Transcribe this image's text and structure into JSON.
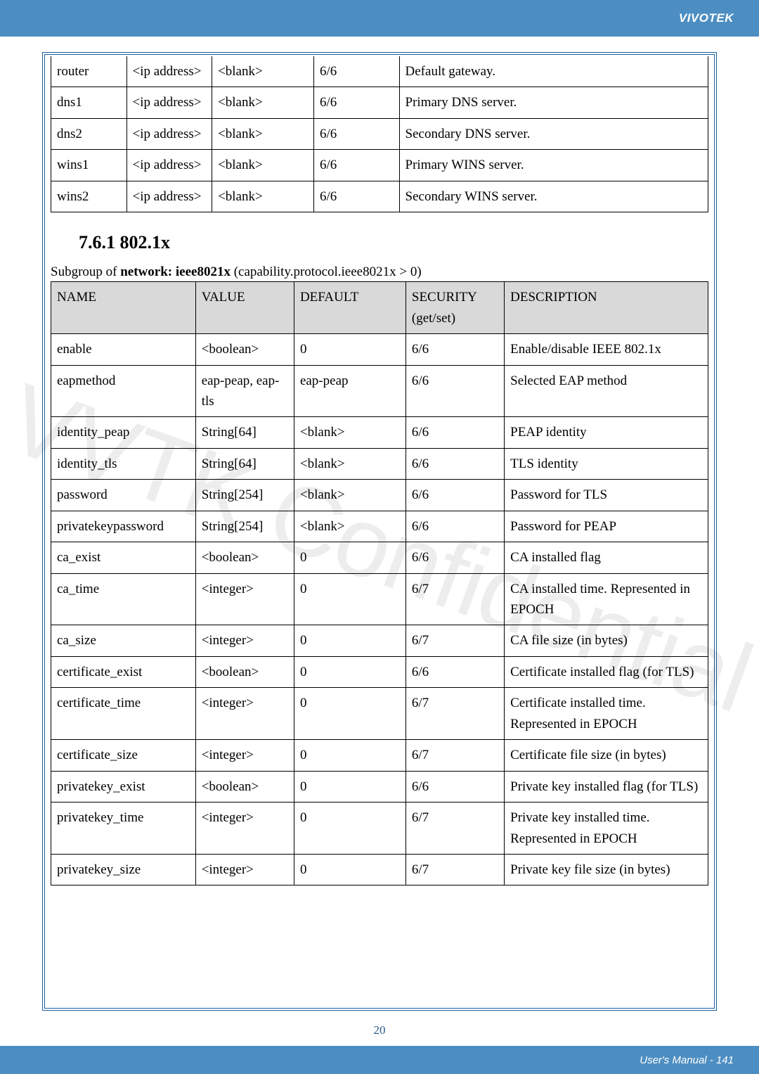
{
  "header": {
    "brand": "VIVOTEK"
  },
  "table1": {
    "columns": [
      "",
      "",
      "",
      "",
      ""
    ],
    "rows": [
      [
        "router",
        "<ip address>",
        "<blank>",
        "6/6",
        "Default gateway."
      ],
      [
        "dns1",
        "<ip address>",
        "<blank>",
        "6/6",
        "Primary DNS server."
      ],
      [
        "dns2",
        "<ip address>",
        "<blank>",
        "6/6",
        "Secondary DNS server."
      ],
      [
        "wins1",
        "<ip address>",
        "<blank>",
        "6/6",
        "Primary WINS server."
      ],
      [
        "wins2",
        "<ip address>",
        "<blank>",
        "6/6",
        "Secondary WINS server."
      ]
    ]
  },
  "section_heading": "7.6.1 802.1x",
  "subgroup_prefix": "Subgroup of ",
  "subgroup_bold": "network: ieee8021x",
  "subgroup_suffix": " (capability.protocol.ieee8021x > 0)",
  "table2": {
    "headers": [
      "NAME",
      "VALUE",
      "DEFAULT",
      "SECURITY (get/set)",
      "DESCRIPTION"
    ],
    "rows": [
      [
        "enable",
        "<boolean>",
        "0",
        "6/6",
        "Enable/disable IEEE 802.1x"
      ],
      [
        "eapmethod",
        "eap-peap, eap-tls",
        "eap-peap",
        "6/6",
        "Selected EAP method"
      ],
      [
        "identity_peap",
        "String[64]",
        "<blank>",
        "6/6",
        "PEAP identity"
      ],
      [
        "identity_tls",
        "String[64]",
        "<blank>",
        "6/6",
        "TLS identity"
      ],
      [
        "password",
        "String[254]",
        "<blank>",
        "6/6",
        "Password for TLS"
      ],
      [
        "privatekeypassword",
        "String[254]",
        "<blank>",
        "6/6",
        "Password for PEAP"
      ],
      [
        "ca_exist",
        "<boolean>",
        "0",
        "6/6",
        "CA installed flag"
      ],
      [
        "ca_time",
        "<integer>",
        "0",
        "6/7",
        "CA installed time. Represented in EPOCH"
      ],
      [
        "ca_size",
        "<integer>",
        "0",
        "6/7",
        "CA file size (in bytes)"
      ],
      [
        "certificate_exist",
        "<boolean>",
        "0",
        "6/6",
        "Certificate installed flag (for TLS)"
      ],
      [
        "certificate_time",
        "<integer>",
        "0",
        "6/7",
        "Certificate installed time. Represented in EPOCH"
      ],
      [
        "certificate_size",
        "<integer>",
        "0",
        "6/7",
        "Certificate file size (in bytes)"
      ],
      [
        "privatekey_exist",
        "<boolean>",
        "0",
        "6/6",
        "Private key installed flag (for TLS)"
      ],
      [
        "privatekey_time",
        "<integer>",
        "0",
        "6/7",
        "Private key installed time. Represented in EPOCH"
      ],
      [
        "privatekey_size",
        "<integer>",
        "0",
        "6/7",
        "Private key file size (in bytes)"
      ]
    ]
  },
  "watermark": "VVTK Confidential",
  "page_number": "20",
  "footer": {
    "text": "User's Manual - 141"
  }
}
